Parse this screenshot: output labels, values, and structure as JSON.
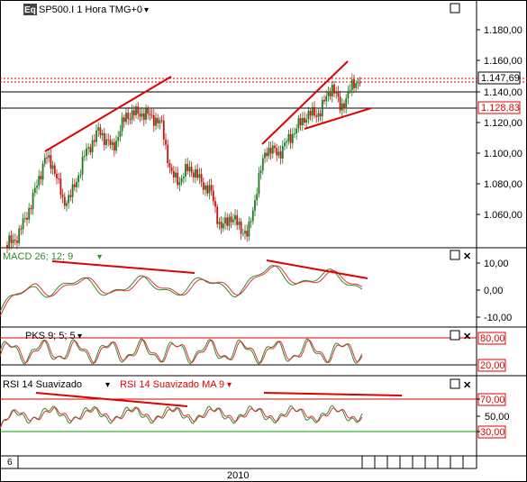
{
  "main_panel": {
    "logo": "Eq",
    "title": "SP500.I 1 Hora TMG+0",
    "y_ticks": [
      "1.180,00",
      "1.160,00",
      "1.140,00",
      "1.120,00",
      "1.100,00",
      "1.080,00",
      "1.060,00"
    ],
    "last_price": "1.147,69",
    "support_price": "1.128,83"
  },
  "macd_panel": {
    "title": "MACD 26; 12; 9",
    "y_ticks": [
      "10,00",
      "0,00",
      "-10,00"
    ]
  },
  "stoch_panel": {
    "title": "PKS 9; 5; 5",
    "levels": [
      "80,00",
      "20,00"
    ]
  },
  "rsi_panel": {
    "title_rsi": "RSI 14 Suavizado",
    "title_ma": "RSI 14 Suavizado MA 9",
    "levels": [
      "70,00",
      "50,00",
      "30,00"
    ]
  },
  "time_axis": {
    "left_label": "6",
    "year_label": "2010"
  },
  "colors": {
    "up_candle": "#1d7a1d",
    "down_candle": "#cc1111",
    "trendline": "#e00000",
    "indicator_line_1": "#2e8b2e",
    "indicator_line_2": "#e03030",
    "level_line": "#e00000",
    "oversold_line": "#00a000"
  }
}
